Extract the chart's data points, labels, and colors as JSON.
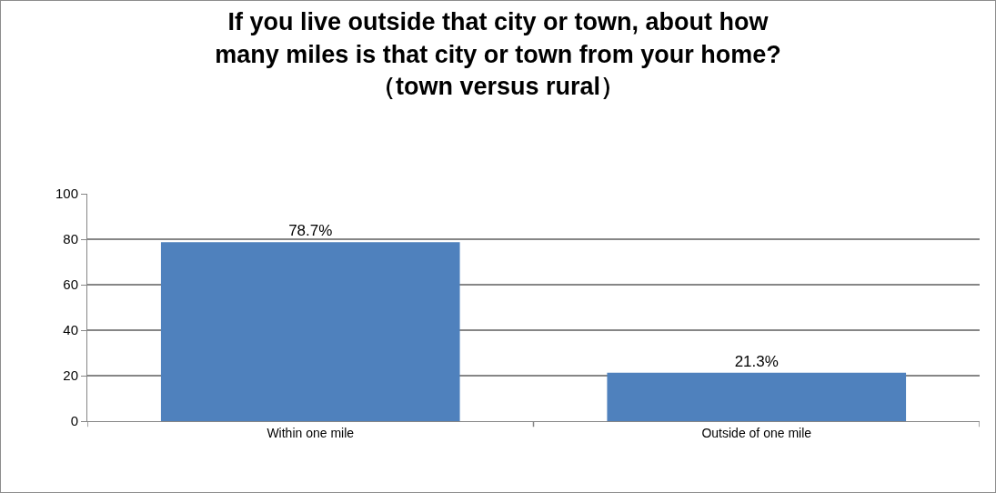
{
  "chart_data": {
    "type": "bar",
    "title": "If you live outside that city or town, about how\nmany miles is that city or town from your home?\n（town versus rural）",
    "categories": [
      "Within one mile",
      "Outside of one mile"
    ],
    "values": [
      78.7,
      21.3
    ],
    "value_labels": [
      "78.7%",
      "21.3%"
    ],
    "color": "#4f81bd",
    "ylim": [
      0,
      100
    ],
    "yticks": [
      0,
      20,
      40,
      60,
      80,
      100
    ],
    "grid": "y"
  }
}
